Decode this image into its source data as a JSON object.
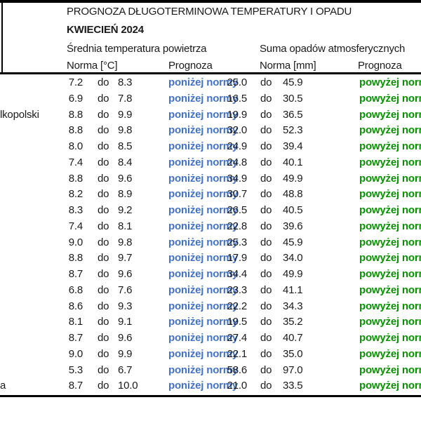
{
  "header": {
    "title": "PROGNOZA DŁUGOTERMINOWA TEMPERATURY I OPADU",
    "subtitle": "KWIECIEŃ 2024",
    "temp_group": "Średnia temperatura powietrza",
    "precip_group": "Suma opadów atmosferycznych",
    "temp_norm_label": "Norma [°C]",
    "temp_forecast_label": "Prognoza",
    "precip_norm_label": "Norma [mm]",
    "precip_forecast_label": "Prognoza"
  },
  "table": {
    "separator_label": "do",
    "rows": [
      {
        "city": "",
        "temp_low": "7.2",
        "temp_high": "8.3",
        "temp_forecast": "poniżej normy",
        "precip_low": "25.0",
        "precip_high": "45.9",
        "precip_forecast": "powyżej normy"
      },
      {
        "city": "",
        "temp_low": "6.9",
        "temp_high": "7.8",
        "temp_forecast": "poniżej normy",
        "precip_low": "16.5",
        "precip_high": "30.5",
        "precip_forecast": "powyżej normy"
      },
      {
        "city": "lkopolski",
        "temp_low": "8.8",
        "temp_high": "9.9",
        "temp_forecast": "poniżej normy",
        "precip_low": "19.9",
        "precip_high": "36.5",
        "precip_forecast": "powyżej normy"
      },
      {
        "city": "",
        "temp_low": "8.8",
        "temp_high": "9.8",
        "temp_forecast": "poniżej normy",
        "precip_low": "32.0",
        "precip_high": "52.3",
        "precip_forecast": "powyżej normy"
      },
      {
        "city": "",
        "temp_low": "8.0",
        "temp_high": "8.5",
        "temp_forecast": "poniżej normy",
        "precip_low": "24.9",
        "precip_high": "39.4",
        "precip_forecast": "powyżej normy"
      },
      {
        "city": "",
        "temp_low": "7.4",
        "temp_high": "8.4",
        "temp_forecast": "poniżej normy",
        "precip_low": "24.8",
        "precip_high": "40.1",
        "precip_forecast": "powyżej normy"
      },
      {
        "city": "",
        "temp_low": "8.8",
        "temp_high": "9.6",
        "temp_forecast": "poniżej normy",
        "precip_low": "34.9",
        "precip_high": "49.9",
        "precip_forecast": "powyżej normy"
      },
      {
        "city": "",
        "temp_low": "8.2",
        "temp_high": "8.9",
        "temp_forecast": "poniżej normy",
        "precip_low": "30.7",
        "precip_high": "48.8",
        "precip_forecast": "powyżej normy"
      },
      {
        "city": "",
        "temp_low": "8.3",
        "temp_high": "9.2",
        "temp_forecast": "poniżej normy",
        "precip_low": "26.5",
        "precip_high": "40.5",
        "precip_forecast": "powyżej normy"
      },
      {
        "city": "",
        "temp_low": "7.4",
        "temp_high": "8.1",
        "temp_forecast": "poniżej normy",
        "precip_low": "22.8",
        "precip_high": "39.6",
        "precip_forecast": "powyżej normy"
      },
      {
        "city": "",
        "temp_low": "9.0",
        "temp_high": "9.8",
        "temp_forecast": "poniżej normy",
        "precip_low": "25.3",
        "precip_high": "45.9",
        "precip_forecast": "powyżej normy"
      },
      {
        "city": "",
        "temp_low": "8.8",
        "temp_high": "9.7",
        "temp_forecast": "poniżej normy",
        "precip_low": "17.9",
        "precip_high": "34.0",
        "precip_forecast": "powyżej normy"
      },
      {
        "city": "",
        "temp_low": "8.7",
        "temp_high": "9.6",
        "temp_forecast": "poniżej normy",
        "precip_low": "34.4",
        "precip_high": "49.9",
        "precip_forecast": "powyżej normy"
      },
      {
        "city": "",
        "temp_low": "6.8",
        "temp_high": "7.6",
        "temp_forecast": "poniżej normy",
        "precip_low": "23.3",
        "precip_high": "41.1",
        "precip_forecast": "powyżej normy"
      },
      {
        "city": "",
        "temp_low": "8.6",
        "temp_high": "9.3",
        "temp_forecast": "poniżej normy",
        "precip_low": "22.2",
        "precip_high": "34.3",
        "precip_forecast": "powyżej normy"
      },
      {
        "city": "",
        "temp_low": "8.1",
        "temp_high": "9.1",
        "temp_forecast": "poniżej normy",
        "precip_low": "19.5",
        "precip_high": "35.2",
        "precip_forecast": "powyżej normy"
      },
      {
        "city": "",
        "temp_low": "8.7",
        "temp_high": "9.6",
        "temp_forecast": "poniżej normy",
        "precip_low": "27.4",
        "precip_high": "40.7",
        "precip_forecast": "powyżej normy"
      },
      {
        "city": "",
        "temp_low": "9.0",
        "temp_high": "9.9",
        "temp_forecast": "poniżej normy",
        "precip_low": "22.1",
        "precip_high": "35.0",
        "precip_forecast": "powyżej normy"
      },
      {
        "city": "",
        "temp_low": "5.3",
        "temp_high": "6.7",
        "temp_forecast": "poniżej normy",
        "precip_low": "58.6",
        "precip_high": "97.0",
        "precip_forecast": "powyżej normy"
      },
      {
        "city": "a",
        "temp_low": "8.7",
        "temp_high": "10.0",
        "temp_forecast": "poniżej normy",
        "precip_low": "21.0",
        "precip_high": "33.5",
        "precip_forecast": "powyżej normy"
      }
    ]
  },
  "colors": {
    "below_normal_blue": "#4472C4",
    "above_normal_green": "#089000",
    "border_black": "#000000"
  }
}
